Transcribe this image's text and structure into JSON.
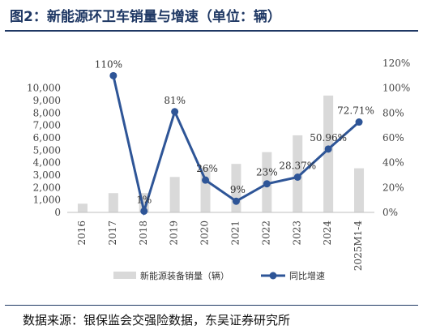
{
  "title": "图2：新能源环卫车销量与增速（单位：辆）",
  "source": "数据来源：银保监会交强险数据，东吴证券研究所",
  "chart_data": {
    "type": "bar",
    "categories": [
      "2016",
      "2017",
      "2018",
      "2019",
      "2020",
      "2021",
      "2022",
      "2023",
      "2024",
      "2025M1-4"
    ],
    "series": [
      {
        "name": "新能源装备销量（辆）",
        "type": "bar",
        "axis": "left",
        "color": "#d9d9d9",
        "values": [
          700,
          1550,
          1550,
          2850,
          3600,
          3900,
          4850,
          6200,
          9400,
          3550
        ]
      },
      {
        "name": "同比增速",
        "type": "line",
        "axis": "right",
        "color": "#2e5597",
        "values": [
          null,
          110,
          1,
          81,
          26,
          9,
          23,
          28.37,
          50.96,
          72.71
        ],
        "labels": [
          "",
          "110%",
          "1%",
          "81%",
          "26%",
          "9%",
          "23%",
          "28.37%",
          "50.96%",
          "72.71%"
        ]
      }
    ],
    "y_left": {
      "min": 0,
      "max": 12000,
      "ticks": [
        "0",
        "1,000",
        "2,000",
        "3,000",
        "4,000",
        "5,000",
        "6,000",
        "7,000",
        "8,000",
        "9,000",
        "10,000"
      ]
    },
    "y_right": {
      "min": 0,
      "max": 120,
      "ticks": [
        "0%",
        "20%",
        "40%",
        "60%",
        "80%",
        "100%",
        "120%"
      ]
    },
    "legend_position": "bottom",
    "grid": false
  }
}
